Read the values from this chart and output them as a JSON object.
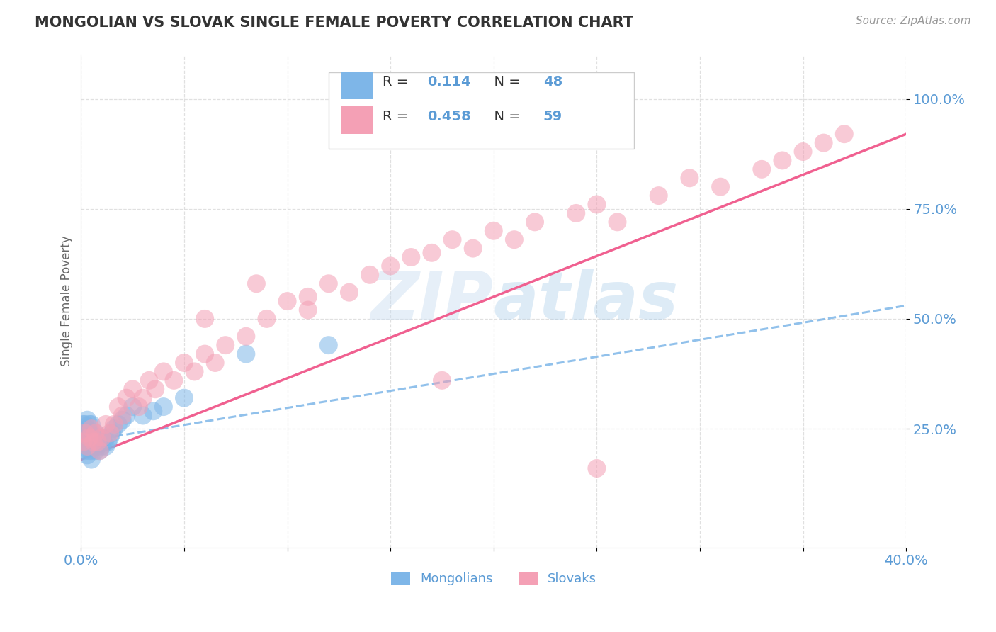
{
  "title": "MONGOLIAN VS SLOVAK SINGLE FEMALE POVERTY CORRELATION CHART",
  "source_text": "Source: ZipAtlas.com",
  "ylabel": "Single Female Poverty",
  "xlim": [
    0.0,
    0.4
  ],
  "ylim": [
    -0.02,
    1.1
  ],
  "xticks": [
    0.0,
    0.05,
    0.1,
    0.15,
    0.2,
    0.25,
    0.3,
    0.35,
    0.4
  ],
  "xtick_labels": [
    "0.0%",
    "",
    "",
    "",
    "",
    "",
    "",
    "",
    "40.0%"
  ],
  "ytick_positions": [
    0.25,
    0.5,
    0.75,
    1.0
  ],
  "ytick_labels": [
    "25.0%",
    "50.0%",
    "75.0%",
    "100.0%"
  ],
  "mongolian_color": "#7EB6E8",
  "slovak_color": "#F4A0B5",
  "mongolian_trend_color": "#7EB6E8",
  "slovak_trend_color": "#F06090",
  "R_mongolian": 0.114,
  "N_mongolian": 48,
  "R_slovak": 0.458,
  "N_slovak": 59,
  "watermark": "ZIPatlas",
  "mongolian_x": [
    0.001,
    0.001,
    0.001,
    0.002,
    0.002,
    0.002,
    0.002,
    0.003,
    0.003,
    0.003,
    0.003,
    0.003,
    0.004,
    0.004,
    0.004,
    0.004,
    0.005,
    0.005,
    0.005,
    0.005,
    0.005,
    0.006,
    0.006,
    0.007,
    0.007,
    0.007,
    0.008,
    0.008,
    0.009,
    0.009,
    0.01,
    0.01,
    0.011,
    0.012,
    0.013,
    0.014,
    0.015,
    0.016,
    0.018,
    0.02,
    0.022,
    0.025,
    0.03,
    0.035,
    0.04,
    0.05,
    0.08,
    0.12
  ],
  "mongolian_y": [
    0.22,
    0.24,
    0.26,
    0.2,
    0.22,
    0.24,
    0.26,
    0.19,
    0.21,
    0.23,
    0.25,
    0.27,
    0.2,
    0.22,
    0.24,
    0.26,
    0.18,
    0.2,
    0.22,
    0.24,
    0.26,
    0.21,
    0.23,
    0.2,
    0.22,
    0.24,
    0.21,
    0.23,
    0.2,
    0.22,
    0.21,
    0.23,
    0.22,
    0.21,
    0.22,
    0.23,
    0.24,
    0.25,
    0.26,
    0.27,
    0.28,
    0.3,
    0.28,
    0.29,
    0.3,
    0.32,
    0.42,
    0.44
  ],
  "slovak_x": [
    0.001,
    0.002,
    0.003,
    0.004,
    0.005,
    0.006,
    0.007,
    0.008,
    0.009,
    0.01,
    0.012,
    0.014,
    0.016,
    0.018,
    0.02,
    0.022,
    0.025,
    0.028,
    0.03,
    0.033,
    0.036,
    0.04,
    0.045,
    0.05,
    0.055,
    0.06,
    0.065,
    0.07,
    0.08,
    0.09,
    0.1,
    0.11,
    0.12,
    0.13,
    0.14,
    0.15,
    0.16,
    0.17,
    0.18,
    0.19,
    0.2,
    0.21,
    0.22,
    0.24,
    0.25,
    0.26,
    0.28,
    0.295,
    0.31,
    0.33,
    0.34,
    0.35,
    0.36,
    0.37,
    0.11,
    0.06,
    0.085,
    0.25,
    0.175
  ],
  "slovak_y": [
    0.22,
    0.24,
    0.21,
    0.23,
    0.25,
    0.22,
    0.24,
    0.22,
    0.2,
    0.23,
    0.26,
    0.24,
    0.26,
    0.3,
    0.28,
    0.32,
    0.34,
    0.3,
    0.32,
    0.36,
    0.34,
    0.38,
    0.36,
    0.4,
    0.38,
    0.42,
    0.4,
    0.44,
    0.46,
    0.5,
    0.54,
    0.52,
    0.58,
    0.56,
    0.6,
    0.62,
    0.64,
    0.65,
    0.68,
    0.66,
    0.7,
    0.68,
    0.72,
    0.74,
    0.76,
    0.72,
    0.78,
    0.82,
    0.8,
    0.84,
    0.86,
    0.88,
    0.9,
    0.92,
    0.55,
    0.5,
    0.58,
    0.16,
    0.36
  ],
  "background_color": "#FFFFFF",
  "grid_color": "#DDDDDD",
  "title_color": "#333333",
  "axis_label_color": "#5B9BD5"
}
